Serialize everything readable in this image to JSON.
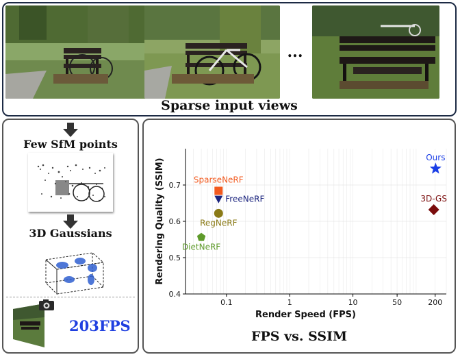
{
  "top": {
    "caption": "Sparse input views",
    "ellipsis": "..."
  },
  "left": {
    "step1": "Few SfM points",
    "step2": "3D Gaussians",
    "fps": "203FPS"
  },
  "chart_title": "FPS vs. SSIM",
  "chart_data": {
    "type": "scatter",
    "xlabel": "Render Speed (FPS)",
    "ylabel": "Rendering Quality (SSIM)",
    "xscale": "log",
    "xlim": [
      0.0225,
      300
    ],
    "ylim": [
      0.4,
      0.8
    ],
    "x_ticks": [
      {
        "v": 0.1,
        "label": "0.1"
      },
      {
        "v": 1,
        "label": "1"
      },
      {
        "v": 10,
        "label": "10"
      },
      {
        "v": 50,
        "label": "50"
      },
      {
        "v": 200,
        "label": "200"
      }
    ],
    "y_ticks": [
      {
        "v": 0.4,
        "label": "0.4"
      },
      {
        "v": 0.5,
        "label": "0.5"
      },
      {
        "v": 0.6,
        "label": "0.6"
      },
      {
        "v": 0.7,
        "label": "0.7"
      }
    ],
    "grid": true,
    "points": [
      {
        "name": "Ours",
        "x": 203,
        "y": 0.745,
        "marker": "star",
        "color": "#1a3ee6",
        "label_pos": "above"
      },
      {
        "name": "3D-GS",
        "x": 190,
        "y": 0.632,
        "marker": "diamond",
        "color": "#7a0c0c",
        "label_pos": "above"
      },
      {
        "name": "SparseNeRF",
        "x": 0.075,
        "y": 0.684,
        "marker": "square",
        "color": "#f25a1f",
        "label_pos": "above"
      },
      {
        "name": "FreeNeRF",
        "x": 0.075,
        "y": 0.661,
        "marker": "triangle-down",
        "color": "#1a237e",
        "label_pos": "right"
      },
      {
        "name": "RegNeRF",
        "x": 0.075,
        "y": 0.622,
        "marker": "circle",
        "color": "#8a7a16",
        "label_pos": "below"
      },
      {
        "name": "DietNeRF",
        "x": 0.04,
        "y": 0.556,
        "marker": "pentagon",
        "color": "#5e9a2a",
        "label_pos": "below"
      }
    ]
  }
}
